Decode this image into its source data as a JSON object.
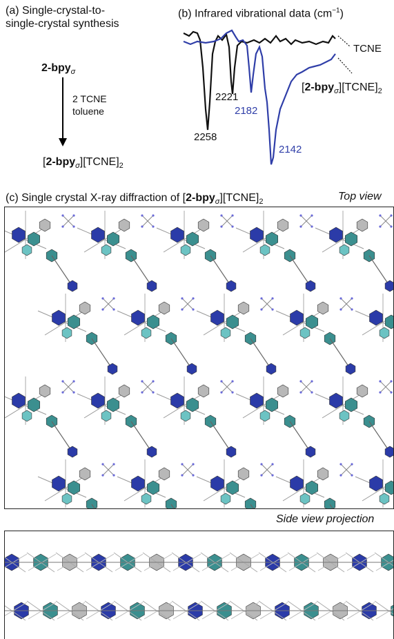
{
  "panel_a": {
    "title_line1": "(a) Single-crystal-to-",
    "title_line2": "single-crystal synthesis",
    "reactant_bold": "2-bpy",
    "reactant_sub": "σ",
    "reagent_line1": "2 TCNE",
    "reagent_line2": "toluene",
    "product_open": "[",
    "product_bold": "2-bpy",
    "product_sub": "σ",
    "product_rest": "][TCNE]",
    "product_subscript": "2"
  },
  "panel_b": {
    "title": "(b) Infrared vibrational data (cm",
    "title_sup": "−1",
    "title_close": ")",
    "legend_tcne": "TCNE",
    "legend_product_open": "[",
    "legend_product_bold": "2-bpy",
    "legend_product_sub": "σ",
    "legend_product_rest": "][TCNE]",
    "legend_product_subscript": "2",
    "peaks_black": [
      "2258",
      "2221"
    ],
    "peaks_blue": [
      "2182",
      "2142"
    ],
    "colors": {
      "black_trace": "#111111",
      "blue_trace": "#2f3ea8"
    }
  },
  "panel_c": {
    "title": "(c) Single crystal X-ray diffraction of [",
    "title_bold": "2-bpy",
    "title_sub": "σ",
    "title_rest": "][TCNE]",
    "title_subscript": "2",
    "top_view_label": "Top view",
    "side_view_label": "Side view projection",
    "colors": {
      "dark_blue": "#2b3ba8",
      "teal": "#3b8f8f",
      "light_teal": "#6cc3c3",
      "grey": "#b8b8b8"
    }
  }
}
